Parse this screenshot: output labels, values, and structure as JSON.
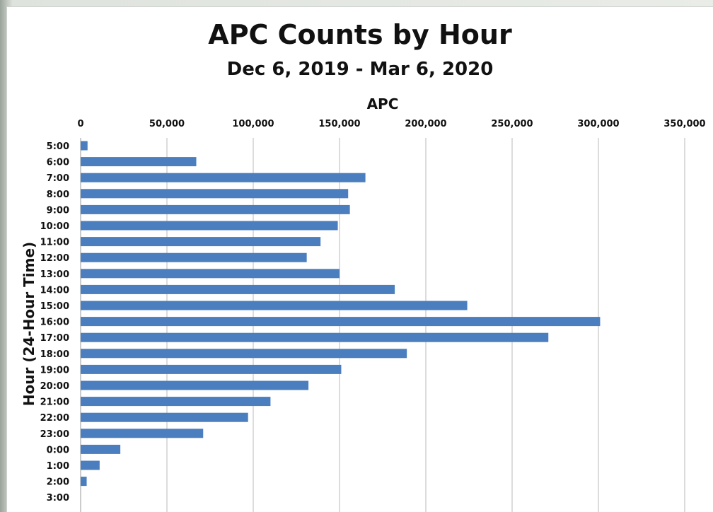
{
  "chart_data": {
    "type": "bar",
    "orientation": "horizontal",
    "title": "APC Counts by Hour",
    "subtitle": "Dec 6, 2019 - Mar 6, 2020",
    "xlabel": "APC",
    "ylabel": "Hour (24-Hour Time)",
    "x_axis_position": "top",
    "xlim": [
      0,
      350000
    ],
    "x_ticks": [
      "0",
      "50,000",
      "100,000",
      "150,000",
      "200,000",
      "250,000",
      "300,000",
      "350,000"
    ],
    "x_tick_values": [
      0,
      50000,
      100000,
      150000,
      200000,
      250000,
      300000,
      350000
    ],
    "grid": "vertical",
    "bar_color": "#4a7ebf",
    "categories": [
      "5:00",
      "6:00",
      "7:00",
      "8:00",
      "9:00",
      "10:00",
      "11:00",
      "12:00",
      "13:00",
      "14:00",
      "15:00",
      "16:00",
      "17:00",
      "18:00",
      "19:00",
      "20:00",
      "21:00",
      "22:00",
      "23:00",
      "0:00",
      "1:00",
      "2:00",
      "3:00"
    ],
    "values": [
      4000,
      67000,
      165000,
      155000,
      156000,
      149000,
      139000,
      131000,
      150000,
      182000,
      224000,
      301000,
      271000,
      189000,
      151000,
      132000,
      110000,
      97000,
      71000,
      23000,
      11000,
      3500,
      0
    ]
  }
}
